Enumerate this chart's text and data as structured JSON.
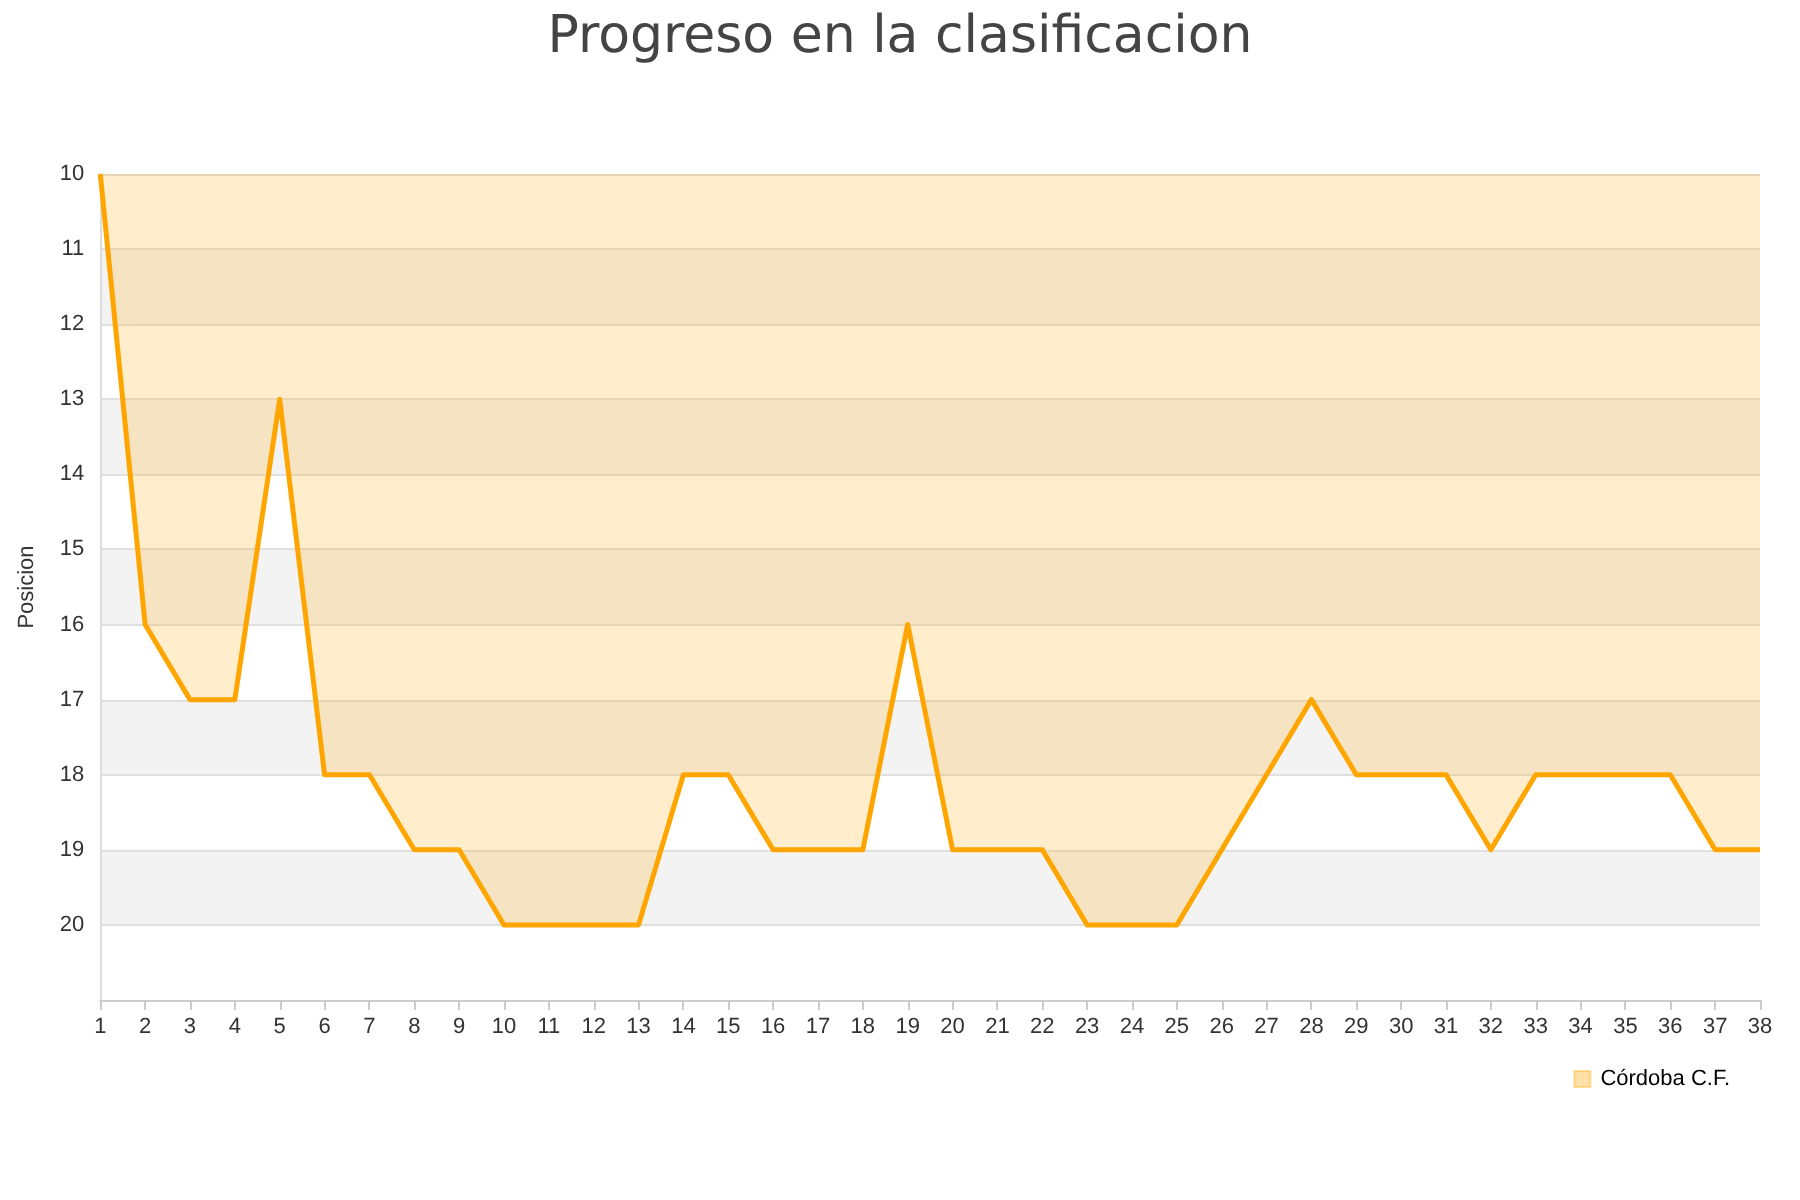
{
  "chart_data": {
    "type": "area",
    "title": "Progreso en la clasificacion",
    "ylabel": "Posicion",
    "x": [
      1,
      2,
      3,
      4,
      5,
      6,
      7,
      8,
      9,
      10,
      11,
      12,
      13,
      14,
      15,
      16,
      17,
      18,
      19,
      20,
      21,
      22,
      23,
      24,
      25,
      26,
      27,
      28,
      29,
      30,
      31,
      32,
      33,
      34,
      35,
      36,
      37,
      38
    ],
    "series": [
      {
        "name": "Córdoba C.F.",
        "color": "#ffa500",
        "values": [
          10,
          16,
          17,
          17,
          13,
          18,
          18,
          19,
          19,
          20,
          20,
          20,
          20,
          18,
          18,
          19,
          19,
          19,
          16,
          19,
          19,
          19,
          20,
          20,
          20,
          19,
          18,
          17,
          18,
          18,
          18,
          19,
          18,
          18,
          18,
          18,
          19,
          19
        ]
      }
    ],
    "xlim": [
      1,
      38
    ],
    "xticks": [
      1,
      2,
      3,
      4,
      5,
      6,
      7,
      8,
      9,
      10,
      11,
      12,
      13,
      14,
      15,
      16,
      17,
      18,
      19,
      20,
      21,
      22,
      23,
      24,
      25,
      26,
      27,
      28,
      29,
      30,
      31,
      32,
      33,
      34,
      35,
      36,
      37,
      38
    ],
    "ylim": [
      21,
      10
    ],
    "yticks": [
      10,
      11,
      12,
      13,
      14,
      15,
      16,
      17,
      18,
      19,
      20
    ],
    "grid": "y",
    "legend": "bottom right",
    "marker": "none"
  }
}
